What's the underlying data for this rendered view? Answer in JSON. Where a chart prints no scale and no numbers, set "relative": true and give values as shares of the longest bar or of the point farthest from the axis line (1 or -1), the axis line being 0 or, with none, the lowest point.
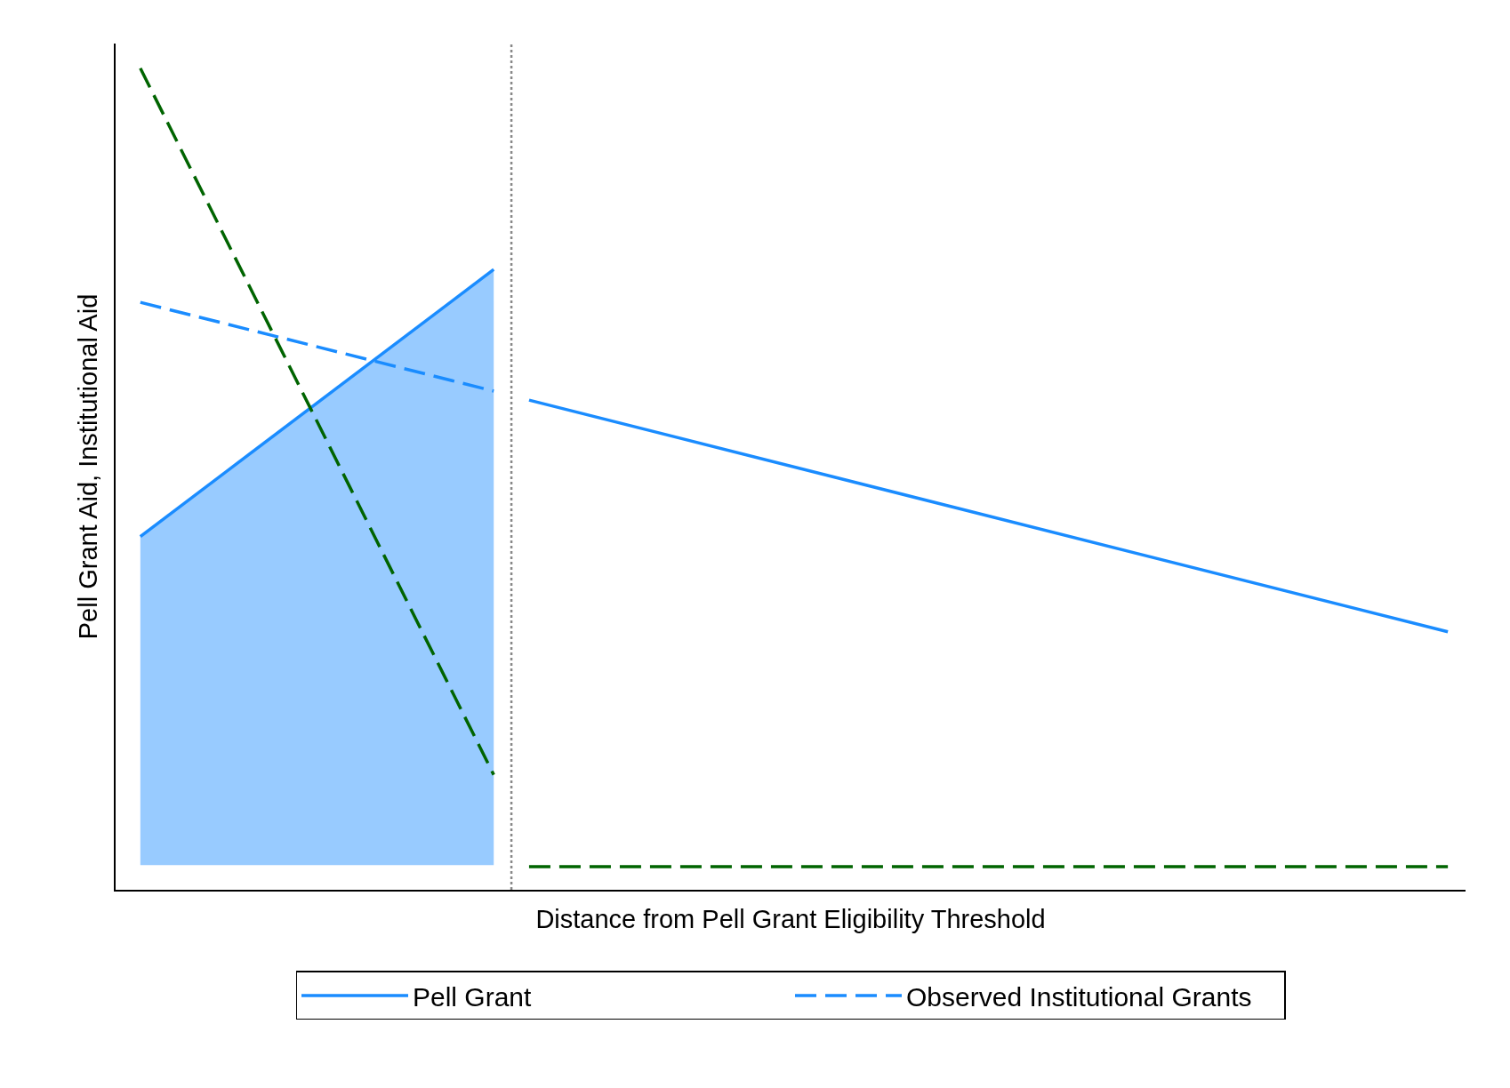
{
  "chart_data": {
    "type": "line",
    "relative": true,
    "xlabel": "Distance from Pell Grant Eligibility Threshold",
    "ylabel": "Pell Grant Aid, Institutional Aid",
    "legend": "bottom",
    "categories": [
      null,
      null,
      null,
      null,
      null,
      null,
      null,
      null,
      null,
      null,
      null,
      null,
      null,
      null,
      null,
      null,
      null,
      null,
      null,
      null,
      null,
      null,
      null,
      null,
      null,
      null,
      null,
      null,
      null,
      null,
      null,
      null,
      null,
      null,
      null,
      null,
      null,
      null
    ],
    "series": [
      {
        "name": "Pell Grant",
        "color": "#1a8cff",
        "line_style": "solid",
        "lower": [
          0.03,
          null,
          null,
          null,
          null,
          null,
          null,
          null,
          null,
          null,
          0.03,
          null,
          null,
          null,
          null,
          null,
          null,
          null,
          null,
          null,
          null,
          null,
          null,
          null,
          null,
          null,
          null,
          null,
          null,
          null,
          null,
          null,
          null,
          null,
          null,
          null,
          null,
          null
        ],
        "upper": [
          0.43,
          null,
          null,
          null,
          null,
          null,
          null,
          null,
          null,
          null,
          0.755,
          null,
          null,
          null,
          null,
          null,
          null,
          null,
          null,
          null,
          null,
          null,
          null,
          null,
          null,
          null,
          null,
          null,
          null,
          null,
          null,
          null,
          null,
          null,
          null,
          null,
          null,
          null
        ],
        "values": [
          0.43,
          null,
          null,
          null,
          null,
          null,
          null,
          null,
          null,
          null,
          0.755,
          null,
          null,
          null,
          null,
          null,
          null,
          null,
          null,
          null,
          null,
          null,
          null,
          null,
          null,
          null,
          null,
          null,
          null,
          null,
          null,
          null,
          null,
          null,
          null,
          null,
          null,
          null
        ]
      },
      {
        "color": "#1a8cff",
        "line_style": "solid",
        "values": [
          null,
          null,
          null,
          null,
          null,
          null,
          null,
          null,
          null,
          null,
          null,
          0.596,
          null,
          null,
          null,
          null,
          null,
          null,
          null,
          null,
          null,
          null,
          null,
          null,
          null,
          null,
          null,
          null,
          null,
          null,
          null,
          null,
          null,
          null,
          null,
          null,
          null,
          0.314
        ]
      },
      {
        "name": "Observed Institutional Grants",
        "color": "#1a8cff",
        "line_style": "dashed",
        "values": [
          0.715,
          null,
          null,
          null,
          null,
          null,
          null,
          null,
          null,
          null,
          0.607,
          null,
          null,
          null,
          null,
          null,
          null,
          null,
          null,
          null,
          null,
          null,
          null,
          null,
          null,
          null,
          null,
          null,
          null,
          null,
          null,
          null,
          null,
          null,
          null,
          null,
          null,
          null
        ]
      },
      {
        "color": "#006400",
        "line_style": "dashed",
        "values": [
          1,
          null,
          null,
          null,
          null,
          null,
          null,
          null,
          null,
          null,
          0.14,
          null,
          null,
          null,
          null,
          null,
          null,
          null,
          null,
          null,
          null,
          null,
          null,
          null,
          null,
          null,
          null,
          null,
          null,
          null,
          null,
          null,
          null,
          null,
          null,
          null,
          null,
          null
        ]
      },
      {
        "color": "#006400",
        "line_style": "dashed",
        "values": [
          null,
          null,
          null,
          null,
          null,
          null,
          null,
          null,
          null,
          null,
          null,
          0.028,
          null,
          null,
          null,
          null,
          null,
          null,
          null,
          null,
          null,
          null,
          null,
          null,
          null,
          null,
          null,
          null,
          null,
          null,
          null,
          null,
          null,
          null,
          null,
          null,
          null,
          0.028
        ]
      }
    ]
  }
}
